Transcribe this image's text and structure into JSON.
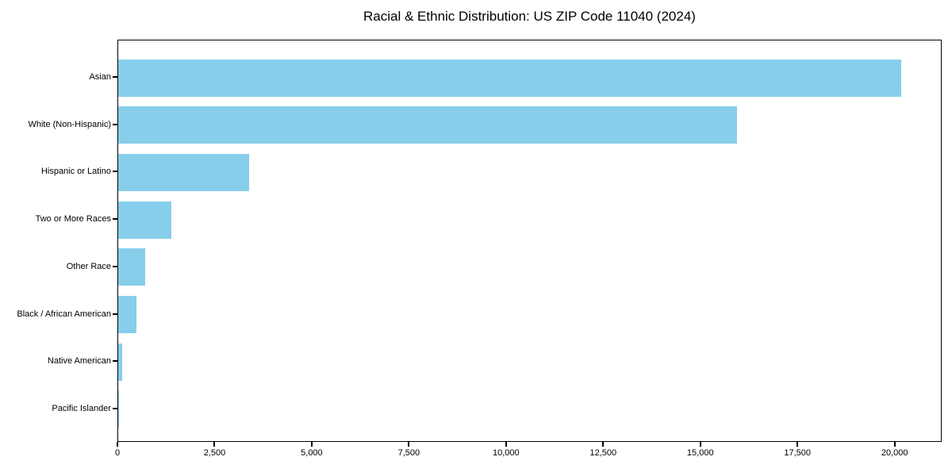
{
  "chart_data": {
    "type": "bar",
    "orientation": "horizontal",
    "title": "Racial & Ethnic Distribution: US ZIP Code 11040 (2024)",
    "categories": [
      "Asian",
      "White (Non-Hispanic)",
      "Hispanic or Latino",
      "Two or More Races",
      "Other Race",
      "Black / African American",
      "Native American",
      "Pacific Islander"
    ],
    "values": [
      20140,
      15920,
      3360,
      1370,
      690,
      470,
      100,
      15
    ],
    "xlabel": "",
    "ylabel": "",
    "x_ticks": [
      0,
      2500,
      5000,
      7500,
      10000,
      12500,
      15000,
      17500,
      20000
    ],
    "x_tick_labels": [
      "0",
      "2,500",
      "5,000",
      "7,500",
      "10,000",
      "12,500",
      "15,000",
      "17,500",
      "20,000"
    ],
    "xlim": [
      0,
      21150
    ],
    "grid": false,
    "legend": null,
    "bar_color": "#87CEEB",
    "axis_color": "#000000",
    "text_color": "#000000",
    "background_color": "#ffffff"
  }
}
